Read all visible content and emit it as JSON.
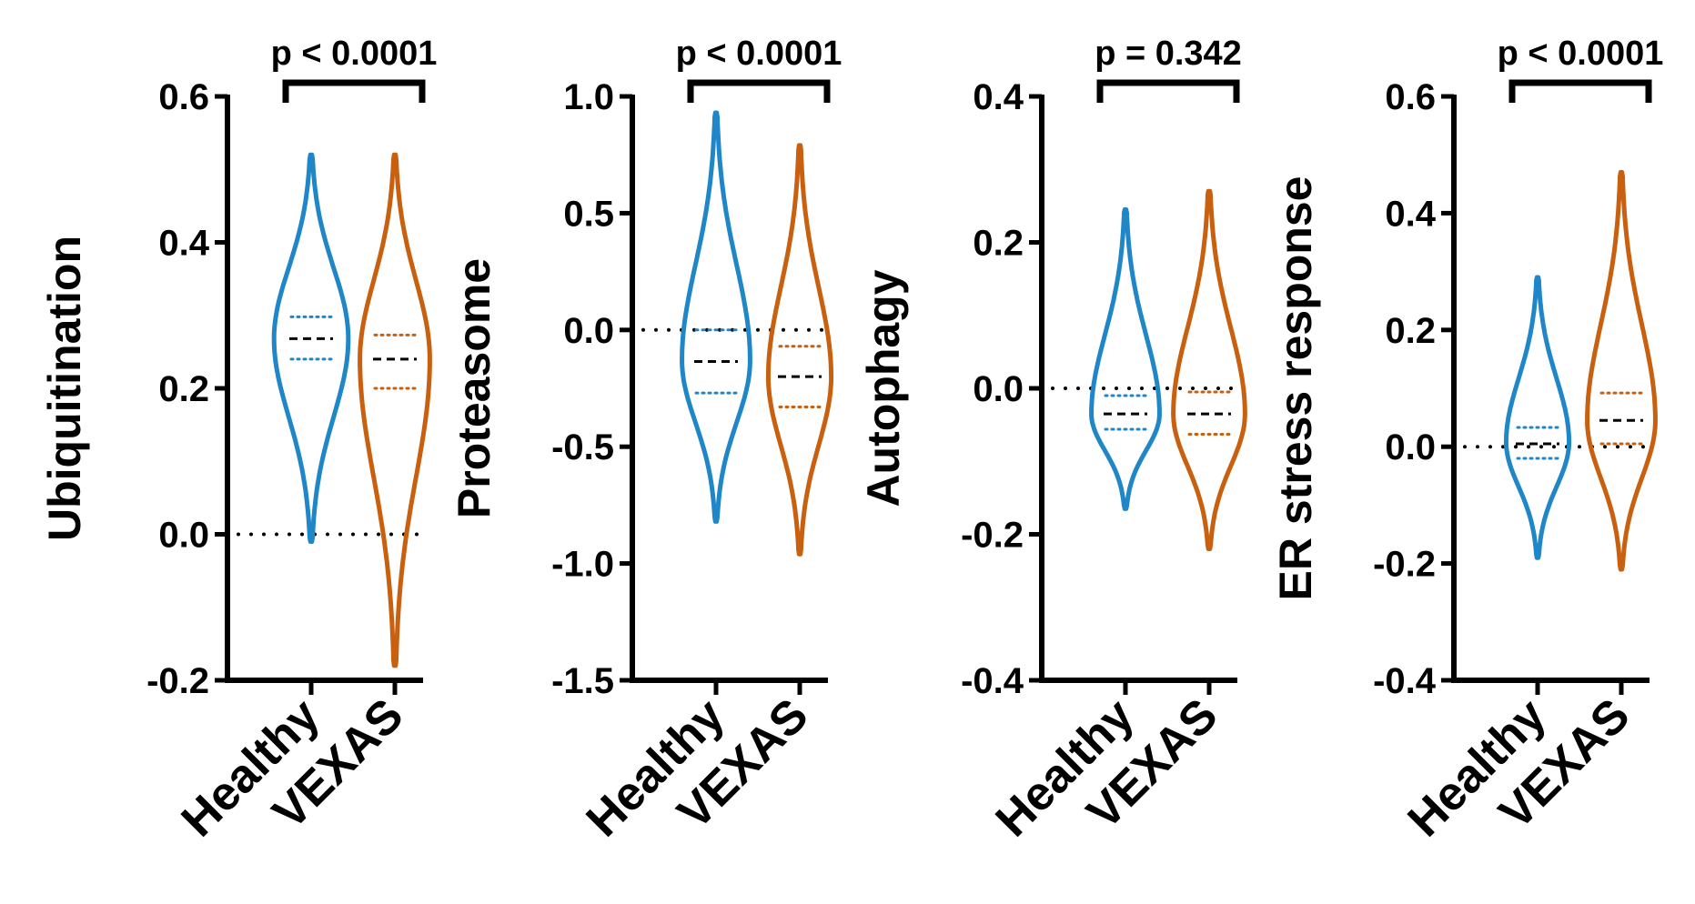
{
  "chart_data": [
    {
      "type": "violin",
      "ylabel": "Ubiquitination",
      "categories": [
        "Healthy",
        "VEXAS"
      ],
      "ylim": [
        -0.2,
        0.6
      ],
      "yticks": [
        -0.2,
        0.0,
        0.2,
        0.4,
        0.6
      ],
      "tick_labels": [
        "-0.2",
        "0.0",
        "0.2",
        "0.4",
        "0.6"
      ],
      "pvalue_label": "p < 0.0001",
      "reference_line": 0.0,
      "groups": [
        {
          "name": "Healthy",
          "color": "#1f86c8",
          "min": -0.01,
          "max": 0.52,
          "q1": 0.24,
          "median": 0.268,
          "q3": 0.298,
          "mode": 0.268,
          "max_halfwidth": 0.85
        },
        {
          "name": "VEXAS",
          "color": "#c8600f",
          "min": -0.18,
          "max": 0.52,
          "q1": 0.2,
          "median": 0.24,
          "q3": 0.273,
          "mode": 0.24,
          "max_halfwidth": 0.8
        }
      ]
    },
    {
      "type": "violin",
      "ylabel": "Proteasome",
      "categories": [
        "Healthy",
        "VEXAS"
      ],
      "ylim": [
        -1.5,
        1.0
      ],
      "yticks": [
        -1.5,
        -1.0,
        -0.5,
        0.0,
        0.5,
        1.0
      ],
      "tick_labels": [
        "-1.5",
        "-1.0",
        "-0.5",
        "0.0",
        "0.5",
        "1.0"
      ],
      "pvalue_label": "p < 0.0001",
      "reference_line": 0.0,
      "groups": [
        {
          "name": "Healthy",
          "color": "#1f86c8",
          "min": -0.82,
          "max": 0.93,
          "q1": -0.27,
          "median": -0.135,
          "q3": 0.0,
          "mode": -0.13,
          "max_halfwidth": 0.78
        },
        {
          "name": "VEXAS",
          "color": "#c8600f",
          "min": -0.96,
          "max": 0.79,
          "q1": -0.33,
          "median": -0.2,
          "q3": -0.07,
          "mode": -0.2,
          "max_halfwidth": 0.72
        }
      ]
    },
    {
      "type": "violin",
      "ylabel": "Autophagy",
      "categories": [
        "Healthy",
        "VEXAS"
      ],
      "ylim": [
        -0.4,
        0.4
      ],
      "yticks": [
        -0.4,
        -0.2,
        0.0,
        0.2,
        0.4
      ],
      "tick_labels": [
        "-0.4",
        "-0.2",
        "0.0",
        "0.2",
        "0.4"
      ],
      "pvalue_label": "p = 0.342",
      "reference_line": 0.0,
      "groups": [
        {
          "name": "Healthy",
          "color": "#1f86c8",
          "min": -0.165,
          "max": 0.245,
          "q1": -0.056,
          "median": -0.035,
          "q3": -0.01,
          "mode": -0.035,
          "max_halfwidth": 0.78
        },
        {
          "name": "VEXAS",
          "color": "#c8600f",
          "min": -0.22,
          "max": 0.27,
          "q1": -0.063,
          "median": -0.035,
          "q3": -0.005,
          "mode": -0.035,
          "max_halfwidth": 0.82
        }
      ]
    },
    {
      "type": "violin",
      "ylabel": "ER stress response",
      "categories": [
        "Healthy",
        "VEXAS"
      ],
      "ylim": [
        -0.4,
        0.6
      ],
      "yticks": [
        -0.4,
        -0.2,
        0.0,
        0.2,
        0.4,
        0.6
      ],
      "tick_labels": [
        "-0.4",
        "-0.2",
        "0.0",
        "0.2",
        "0.4",
        "0.6"
      ],
      "pvalue_label": "p < 0.0001",
      "reference_line": 0.0,
      "groups": [
        {
          "name": "Healthy",
          "color": "#1f86c8",
          "min": -0.19,
          "max": 0.29,
          "q1": -0.02,
          "median": 0.005,
          "q3": 0.033,
          "mode": 0.008,
          "max_halfwidth": 0.72
        },
        {
          "name": "VEXAS",
          "color": "#c8600f",
          "min": -0.21,
          "max": 0.47,
          "q1": 0.005,
          "median": 0.045,
          "q3": 0.092,
          "mode": 0.045,
          "max_halfwidth": 0.78
        }
      ]
    }
  ]
}
